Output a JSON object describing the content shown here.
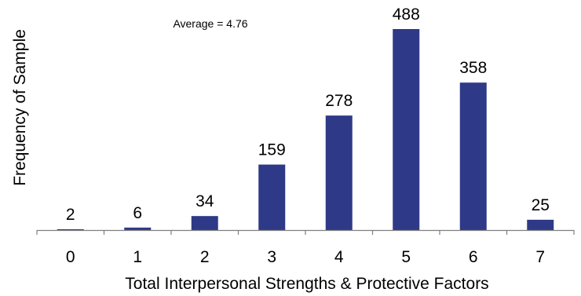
{
  "chart_data": {
    "type": "bar",
    "categories": [
      "0",
      "1",
      "2",
      "3",
      "4",
      "5",
      "6",
      "7"
    ],
    "values": [
      2,
      6,
      34,
      159,
      278,
      488,
      358,
      25
    ],
    "data_labels": [
      "2",
      "6",
      "34",
      "159",
      "278",
      "488",
      "358",
      "25"
    ],
    "xlabel": "Total Interpersonal Strengths & Protective Factors",
    "ylabel": "Frequency of Sample",
    "annotation": "Average = 4.76",
    "ylim": [
      0,
      520
    ],
    "grid": false,
    "legend": "none",
    "bar_color": "#2E3A87",
    "axis_color": "#7F7F7F"
  }
}
